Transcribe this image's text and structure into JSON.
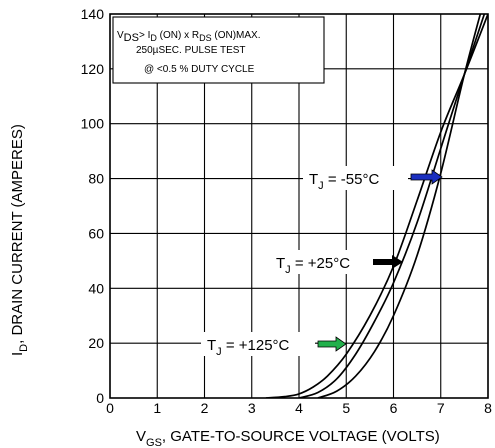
{
  "chart_data": {
    "type": "line",
    "xlabel_main": "V",
    "xlabel_sub": "GS",
    "xlabel_rest": ", GATE-TO-SOURCE VOLTAGE (VOLTS)",
    "ylabel_main": "I",
    "ylabel_sub": "D",
    "ylabel_rest": ", DRAIN CURRENT (AMPERES)",
    "xlim": [
      0,
      8
    ],
    "ylim": [
      0,
      140
    ],
    "x_ticks": [
      "0",
      "1",
      "2",
      "3",
      "4",
      "5",
      "6",
      "7",
      "8"
    ],
    "y_ticks": [
      "0",
      "20",
      "40",
      "60",
      "80",
      "100",
      "120",
      "140"
    ],
    "grid": true,
    "note": {
      "line1": {
        "t1": "V",
        "s1": "DS",
        "t2": "> I",
        "s2": "D",
        "t3": " (ON) x  R",
        "s3": "DS",
        "t4": " (ON)MAX."
      },
      "line2": "250µSEC.  PULSE  TEST",
      "line3": "@  <0.5 %  DUTY  CYCLE"
    },
    "series": [
      {
        "label_main": "T",
        "label_sub": "J",
        "label_rest": " = -55°C",
        "arrow_color": "#1a2fbf",
        "points": [
          [
            3.3,
            0
          ],
          [
            3.7,
            0.5
          ],
          [
            4.0,
            1.5
          ],
          [
            4.3,
            4
          ],
          [
            4.6,
            8
          ],
          [
            5.0,
            16
          ],
          [
            5.5,
            30
          ],
          [
            6.0,
            48
          ],
          [
            6.5,
            72
          ],
          [
            7.0,
            97
          ],
          [
            7.5,
            118
          ],
          [
            8.0,
            140
          ]
        ]
      },
      {
        "label_main": "T",
        "label_sub": "J",
        "label_rest": " = +25°C",
        "arrow_color": "#000000",
        "points": [
          [
            4.0,
            0
          ],
          [
            4.4,
            2
          ],
          [
            4.8,
            7
          ],
          [
            5.2,
            16
          ],
          [
            5.6,
            28
          ],
          [
            6.0,
            42
          ],
          [
            6.5,
            64
          ],
          [
            7.0,
            91
          ],
          [
            7.5,
            118
          ],
          [
            8.0,
            144
          ]
        ]
      },
      {
        "label_main": "T",
        "label_sub": "J",
        "label_rest": " = +125°C",
        "arrow_color": "#22b04b",
        "points": [
          [
            4.4,
            0
          ],
          [
            4.8,
            2.5
          ],
          [
            5.2,
            8
          ],
          [
            5.6,
            17
          ],
          [
            6.0,
            30
          ],
          [
            6.5,
            52
          ],
          [
            7.0,
            82
          ],
          [
            7.5,
            118
          ],
          [
            7.9,
            144
          ]
        ]
      }
    ]
  }
}
